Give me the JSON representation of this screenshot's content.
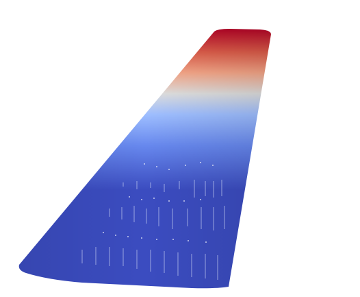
{
  "scene": {
    "background_color": "#ffffff",
    "colormap": "coolwarm",
    "colormap_stops": [
      "#b40426",
      "#dc5d4a",
      "#f4a688",
      "#dddddd",
      "#9ebeff",
      "#6788ee",
      "#3b4cc0"
    ],
    "object": "wing-surface",
    "features": [
      "mesh-artifacts"
    ]
  }
}
